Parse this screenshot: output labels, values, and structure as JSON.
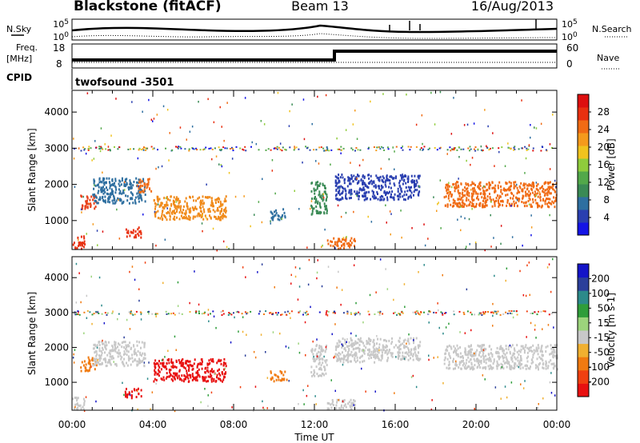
{
  "header": {
    "title": "Blackstone (fitACF)",
    "beam": "Beam 13",
    "date": "16/Aug/2013"
  },
  "top_panels": {
    "nsky_label": "N.Sky",
    "nsearch_label": "N.Search",
    "noise_tick_top": "10^5",
    "noise_tick_bottom": "10^0",
    "freq_label_line1": "Freq.",
    "freq_label_line2": "[MHz]",
    "freq_ticks": [
      "18",
      "8"
    ],
    "nave_label": "Nave",
    "nave_ticks": [
      "60",
      "0"
    ],
    "cpid_label": "CPID",
    "cpid_value": "twofsound  -3501"
  },
  "chart_data": [
    {
      "type": "heatmap",
      "name": "power",
      "ylabel": "Slant Range [km]",
      "xlabel": "",
      "ylim": [
        200,
        4600
      ],
      "yticks": [
        "1000",
        "2000",
        "3000",
        "4000"
      ],
      "xlim_hours": [
        0,
        24
      ],
      "colorbar": {
        "label": "Power [dB]",
        "ticks": [
          "4",
          "8",
          "12",
          "16",
          "20",
          "24",
          "28"
        ],
        "colors": [
          "#1414e6",
          "#2a3fb0",
          "#2e6fa0",
          "#3a8a55",
          "#52a84a",
          "#8fcc3c",
          "#f0c31e",
          "#f59a1c",
          "#f06b14",
          "#e83010",
          "#dd0f0f"
        ]
      },
      "echo_regions": [
        {
          "t0": 0.4,
          "t1": 1.2,
          "r0": 1350,
          "r1": 1750,
          "color": "#e8401a"
        },
        {
          "t0": 1.0,
          "t1": 3.6,
          "r0": 1500,
          "r1": 2200,
          "color": "#2e6fa0"
        },
        {
          "t0": 3.2,
          "t1": 3.9,
          "r0": 1800,
          "r1": 2200,
          "color": "#f06b14"
        },
        {
          "t0": 2.6,
          "t1": 3.4,
          "r0": 550,
          "r1": 850,
          "color": "#e83010"
        },
        {
          "t0": 0.0,
          "t1": 0.6,
          "r0": 250,
          "r1": 600,
          "color": "#e83010"
        },
        {
          "t0": 4.0,
          "t1": 7.6,
          "r0": 1050,
          "r1": 1700,
          "color": "#f08a1a"
        },
        {
          "t0": 9.8,
          "t1": 10.6,
          "r0": 1050,
          "r1": 1350,
          "color": "#2e6fa0"
        },
        {
          "t0": 11.8,
          "t1": 12.6,
          "r0": 1200,
          "r1": 2100,
          "color": "#3a8a55"
        },
        {
          "t0": 12.6,
          "t1": 14.0,
          "r0": 250,
          "r1": 550,
          "color": "#f06b14"
        },
        {
          "t0": 13.0,
          "t1": 17.2,
          "r0": 1600,
          "r1": 2300,
          "color": "#2a3fb0"
        },
        {
          "t0": 18.4,
          "t1": 24.0,
          "r0": 1400,
          "r1": 2100,
          "color": "#f06b14"
        }
      ]
    },
    {
      "type": "heatmap",
      "name": "velocity",
      "ylabel": "Slant Range [km]",
      "xlabel": "Time UT",
      "ylim": [
        200,
        4600
      ],
      "yticks": [
        "1000",
        "2000",
        "3000",
        "4000"
      ],
      "xticks": [
        "00:00",
        "04:00",
        "08:00",
        "12:00",
        "16:00",
        "20:00",
        "00:00"
      ],
      "xlim_hours": [
        0,
        24
      ],
      "colorbar": {
        "label": "Velocity [m s-1]",
        "ticks": [
          "-200",
          "-100",
          "-50",
          "-15",
          "15",
          "50",
          "100",
          "200"
        ],
        "colors": [
          "#e81010",
          "#f04010",
          "#f07a10",
          "#f0b030",
          "#c8c8c8",
          "#9cd47c",
          "#2f9d3a",
          "#2c8a8a",
          "#2b3f9a",
          "#1414c8"
        ]
      },
      "echo_regions": [
        {
          "t0": 0.4,
          "t1": 1.2,
          "r0": 1350,
          "r1": 1750,
          "color": "#f07a10"
        },
        {
          "t0": 1.0,
          "t1": 3.6,
          "r0": 1500,
          "r1": 2200,
          "color": "#c8c8c8"
        },
        {
          "t0": 2.6,
          "t1": 3.4,
          "r0": 550,
          "r1": 850,
          "color": "#e81010"
        },
        {
          "t0": 0.0,
          "t1": 0.6,
          "r0": 250,
          "r1": 600,
          "color": "#c8c8c8"
        },
        {
          "t0": 4.0,
          "t1": 7.6,
          "r0": 1050,
          "r1": 1700,
          "color": "#e81010"
        },
        {
          "t0": 9.8,
          "t1": 10.6,
          "r0": 1050,
          "r1": 1350,
          "color": "#f07a10"
        },
        {
          "t0": 11.8,
          "t1": 12.6,
          "r0": 1200,
          "r1": 2100,
          "color": "#c8c8c8"
        },
        {
          "t0": 12.6,
          "t1": 14.0,
          "r0": 250,
          "r1": 550,
          "color": "#c8c8c8"
        },
        {
          "t0": 13.0,
          "t1": 17.2,
          "r0": 1600,
          "r1": 2300,
          "color": "#c8c8c8"
        },
        {
          "t0": 18.4,
          "t1": 24.0,
          "r0": 1400,
          "r1": 2100,
          "color": "#c8c8c8"
        }
      ]
    }
  ]
}
